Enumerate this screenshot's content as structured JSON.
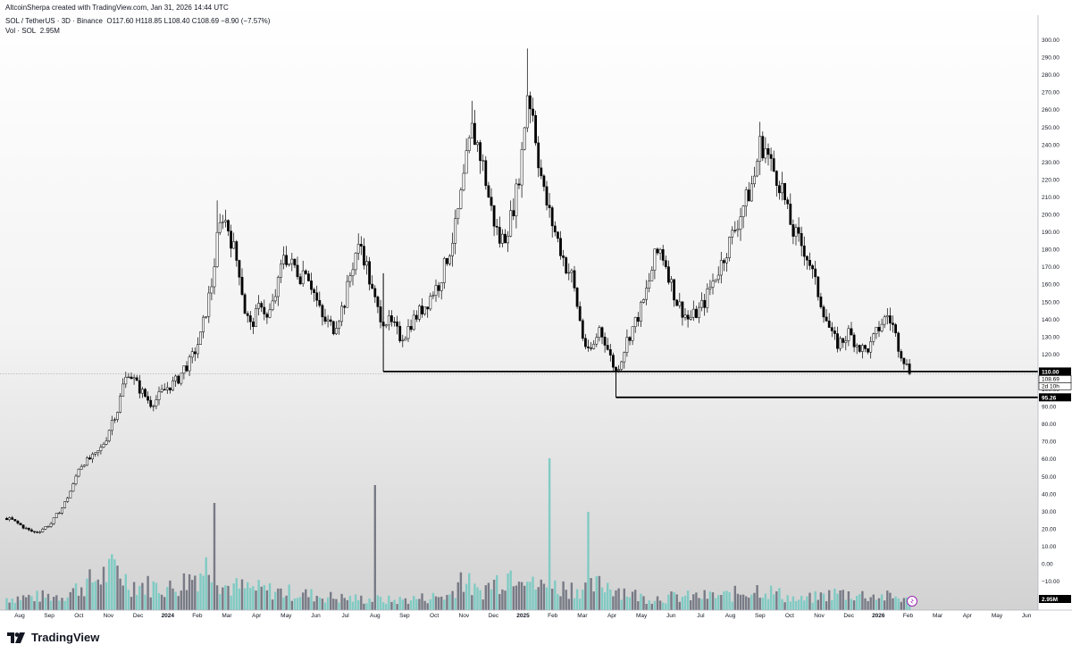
{
  "header": {
    "credit": "AltcoinSherpa created with TradingView.com, Jan 31, 2026 14:44 UTC",
    "symbol": "SOL / TetherUS · 3D · Binance",
    "o_label": "O",
    "o_value": "117.60",
    "h_label": "H",
    "h_value": "118.85",
    "l_label": "L",
    "l_value": "108.40",
    "c_label": "C",
    "c_value": "108.69",
    "change": "−8.90 (−7.57%)",
    "vol_label": "Vol · SOL",
    "vol_value": "2.95M"
  },
  "footer": {
    "brand": "TradingView",
    "logo_icon": "tradingview-logo-icon"
  },
  "colors": {
    "up": "#ffffff",
    "down": "#000000",
    "wick": "#000000",
    "vol_up": "#80cbc4",
    "vol_down": "#787b86",
    "bg_top": "#ffffff",
    "bg_bottom": "#d6d6d6"
  },
  "chart_data": {
    "type": "candlestick",
    "symbol": "SOL/USDT",
    "timeframe": "3D",
    "price_axis": {
      "min": -20,
      "max": 300,
      "ticks": [
        "300.00",
        "290.00",
        "280.00",
        "270.00",
        "260.00",
        "250.00",
        "240.00",
        "230.00",
        "220.00",
        "210.00",
        "200.00",
        "190.00",
        "180.00",
        "170.00",
        "160.00",
        "150.00",
        "140.00",
        "130.00",
        "120.00",
        "110.00",
        "100.00",
        "90.00",
        "80.00",
        "70.00",
        "60.00",
        "50.00",
        "40.00",
        "30.00",
        "20.00",
        "10.00",
        "0.00",
        "−10.00"
      ]
    },
    "time_axis": {
      "labels": [
        "Aug",
        "Sep",
        "Oct",
        "Nov",
        "Dec",
        "2024",
        "Feb",
        "Mar",
        "Apr",
        "May",
        "Jun",
        "Jul",
        "Aug",
        "Sep",
        "Oct",
        "Nov",
        "Dec",
        "2025",
        "Feb",
        "Mar",
        "Apr",
        "May",
        "Jun",
        "Jul",
        "Aug",
        "Sep",
        "Oct",
        "Nov",
        "Dec",
        "2026",
        "Feb",
        "Mar",
        "Apr",
        "May",
        "Jun"
      ],
      "bold": [
        "2024",
        "2025",
        "2026"
      ]
    },
    "price_tags": [
      {
        "value": "110.00",
        "price": 110,
        "style": "dark"
      },
      {
        "value": "108.69",
        "price": 108.69,
        "style": "light"
      },
      {
        "value": "2d 10h",
        "price": 108.69,
        "style": "light-sub"
      },
      {
        "value": "95.26",
        "price": 95.26,
        "style": "dark"
      }
    ],
    "volume_tag": "2.95M",
    "horizontal_levels": [
      {
        "price": 110,
        "from": "2024-08"
      },
      {
        "price": 95.26,
        "from": "2025-04"
      }
    ],
    "last_close": 108.69,
    "price_path": [
      [
        0,
        26
      ],
      [
        2,
        25
      ],
      [
        4,
        23
      ],
      [
        6,
        21
      ],
      [
        8,
        19
      ],
      [
        10,
        18
      ],
      [
        12,
        19
      ],
      [
        14,
        21
      ],
      [
        16,
        23
      ],
      [
        18,
        28
      ],
      [
        20,
        32
      ],
      [
        22,
        38
      ],
      [
        24,
        45
      ],
      [
        26,
        55
      ],
      [
        28,
        58
      ],
      [
        30,
        60
      ],
      [
        32,
        62
      ],
      [
        34,
        66
      ],
      [
        36,
        72
      ],
      [
        38,
        82
      ],
      [
        40,
        88
      ],
      [
        42,
        102
      ],
      [
        44,
        110
      ],
      [
        46,
        105
      ],
      [
        48,
        100
      ],
      [
        50,
        96
      ],
      [
        52,
        92
      ],
      [
        54,
        94
      ],
      [
        56,
        98
      ],
      [
        58,
        101
      ],
      [
        60,
        103
      ],
      [
        62,
        106
      ],
      [
        64,
        112
      ],
      [
        66,
        115
      ],
      [
        68,
        122
      ],
      [
        70,
        130
      ],
      [
        72,
        145
      ],
      [
        74,
        160
      ],
      [
        76,
        185
      ],
      [
        78,
        200
      ],
      [
        80,
        192
      ],
      [
        82,
        180
      ],
      [
        84,
        168
      ],
      [
        86,
        145
      ],
      [
        88,
        136
      ],
      [
        90,
        142
      ],
      [
        92,
        150
      ],
      [
        94,
        140
      ],
      [
        96,
        148
      ],
      [
        98,
        160
      ],
      [
        100,
        178
      ],
      [
        102,
        172
      ],
      [
        104,
        170
      ],
      [
        106,
        165
      ],
      [
        108,
        170
      ],
      [
        110,
        160
      ],
      [
        112,
        150
      ],
      [
        114,
        140
      ],
      [
        116,
        138
      ],
      [
        118,
        135
      ],
      [
        120,
        142
      ],
      [
        122,
        150
      ],
      [
        124,
        165
      ],
      [
        126,
        178
      ],
      [
        128,
        182
      ],
      [
        130,
        170
      ],
      [
        132,
        155
      ],
      [
        134,
        145
      ],
      [
        136,
        140
      ],
      [
        138,
        138
      ],
      [
        140,
        135
      ],
      [
        142,
        130
      ],
      [
        144,
        132
      ],
      [
        146,
        138
      ],
      [
        148,
        142
      ],
      [
        150,
        146
      ],
      [
        152,
        150
      ],
      [
        154,
        156
      ],
      [
        156,
        160
      ],
      [
        158,
        170
      ],
      [
        160,
        180
      ],
      [
        162,
        192
      ],
      [
        164,
        210
      ],
      [
        166,
        230
      ],
      [
        168,
        248
      ],
      [
        170,
        240
      ],
      [
        172,
        228
      ],
      [
        174,
        210
      ],
      [
        176,
        196
      ],
      [
        178,
        185
      ],
      [
        180,
        188
      ],
      [
        182,
        198
      ],
      [
        184,
        212
      ],
      [
        186,
        235
      ],
      [
        188,
        270
      ],
      [
        190,
        258
      ],
      [
        192,
        232
      ],
      [
        194,
        212
      ],
      [
        196,
        200
      ],
      [
        198,
        190
      ],
      [
        200,
        180
      ],
      [
        202,
        170
      ],
      [
        204,
        165
      ],
      [
        206,
        148
      ],
      [
        208,
        130
      ],
      [
        210,
        120
      ],
      [
        212,
        125
      ],
      [
        214,
        135
      ],
      [
        216,
        128
      ],
      [
        218,
        118
      ],
      [
        220,
        110
      ],
      [
        222,
        118
      ],
      [
        224,
        128
      ],
      [
        226,
        135
      ],
      [
        228,
        142
      ],
      [
        230,
        150
      ],
      [
        232,
        162
      ],
      [
        234,
        175
      ],
      [
        236,
        180
      ],
      [
        238,
        172
      ],
      [
        240,
        160
      ],
      [
        242,
        150
      ],
      [
        244,
        145
      ],
      [
        246,
        140
      ],
      [
        248,
        142
      ],
      [
        250,
        145
      ],
      [
        252,
        150
      ],
      [
        254,
        158
      ],
      [
        256,
        165
      ],
      [
        258,
        172
      ],
      [
        260,
        180
      ],
      [
        262,
        188
      ],
      [
        264,
        196
      ],
      [
        266,
        205
      ],
      [
        268,
        212
      ],
      [
        270,
        222
      ],
      [
        272,
        240
      ],
      [
        274,
        238
      ],
      [
        276,
        228
      ],
      [
        278,
        222
      ],
      [
        280,
        215
      ],
      [
        282,
        200
      ],
      [
        284,
        190
      ],
      [
        286,
        185
      ],
      [
        288,
        180
      ],
      [
        290,
        172
      ],
      [
        292,
        160
      ],
      [
        294,
        150
      ],
      [
        296,
        140
      ],
      [
        298,
        130
      ],
      [
        300,
        126
      ],
      [
        302,
        128
      ],
      [
        304,
        132
      ],
      [
        306,
        128
      ],
      [
        308,
        124
      ],
      [
        310,
        122
      ],
      [
        312,
        125
      ],
      [
        314,
        132
      ],
      [
        316,
        138
      ],
      [
        318,
        142
      ],
      [
        320,
        136
      ],
      [
        322,
        125
      ],
      [
        324,
        117
      ],
      [
        326,
        109
      ]
    ],
    "volume_profile": [
      [
        0,
        10
      ],
      [
        20,
        12
      ],
      [
        36,
        30
      ],
      [
        40,
        35
      ],
      [
        44,
        22
      ],
      [
        60,
        18
      ],
      [
        70,
        32
      ],
      [
        74,
        40
      ],
      [
        78,
        20
      ],
      [
        100,
        15
      ],
      [
        120,
        10
      ],
      [
        140,
        8
      ],
      [
        160,
        12
      ],
      [
        164,
        28
      ],
      [
        170,
        14
      ],
      [
        186,
        38
      ],
      [
        190,
        20
      ],
      [
        210,
        18
      ],
      [
        216,
        22
      ],
      [
        230,
        10
      ],
      [
        260,
        12
      ],
      [
        272,
        18
      ],
      [
        286,
        8
      ],
      [
        300,
        14
      ],
      [
        324,
        10
      ],
      [
        326,
        6
      ]
    ]
  }
}
